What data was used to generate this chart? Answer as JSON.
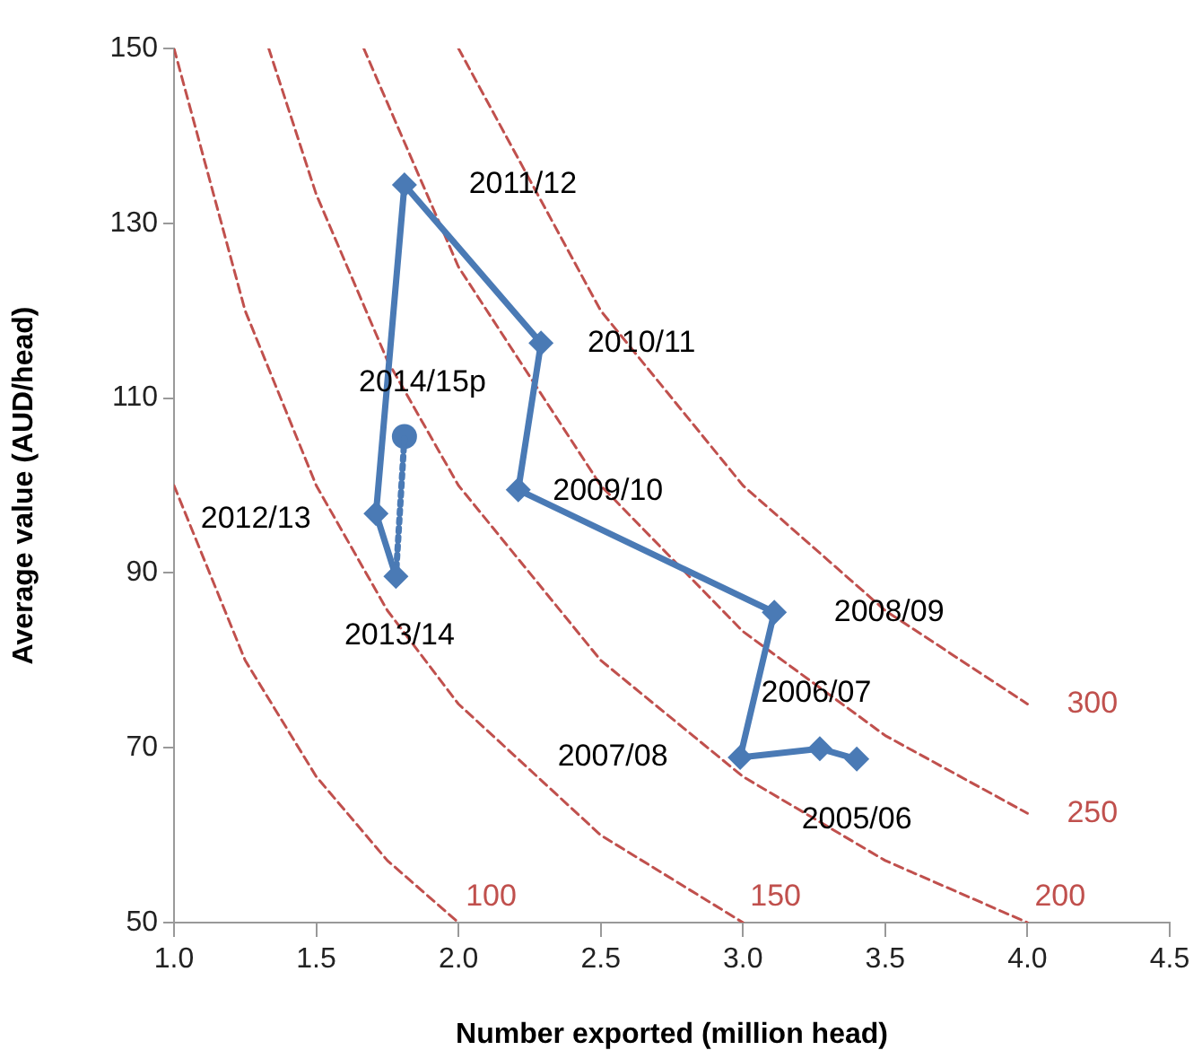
{
  "chart_data": {
    "type": "line",
    "xlabel": "Number exported (million head)",
    "ylabel": "Average value (AUD/head)",
    "xlim": [
      1.0,
      4.5
    ],
    "xticks": [
      {
        "value": 1,
        "label": "1.0"
      },
      {
        "value": 1.5,
        "label": "1.5"
      },
      {
        "value": 2,
        "label": "2.0"
      },
      {
        "value": 2.5,
        "label": "2.5"
      },
      {
        "value": 3,
        "label": "3.0"
      },
      {
        "value": 3.5,
        "label": "3.5"
      },
      {
        "value": 4,
        "label": "4.0"
      },
      {
        "value": 4.5,
        "label": "4.5"
      }
    ],
    "ylim": [
      50,
      150
    ],
    "yticks": [
      50,
      70,
      90,
      110,
      130,
      150
    ],
    "legend": false,
    "series": [
      {
        "color": "#4a7ab5",
        "marker": "diamond",
        "line_style": "solid",
        "x": [
          3.4,
          3.27,
          2.99,
          3.11,
          2.21,
          2.29,
          1.81,
          1.71,
          1.78
        ],
        "values": [
          68.7,
          69.9,
          68.9,
          85.5,
          99.5,
          116.3,
          134.4,
          96.8,
          89.6
        ]
      },
      {
        "color": "#4a7ab5",
        "marker": "none",
        "line_style": "dotted",
        "x": [
          1.78,
          1.81
        ],
        "values": [
          89.6,
          105.6
        ]
      },
      {
        "type": "scatter",
        "color": "#4a7ab5",
        "marker": "circle",
        "x": [
          1.81
        ],
        "values": [
          105.6
        ]
      },
      {
        "name": "100",
        "color": "#c0504d",
        "marker": "none",
        "line_style": "dashed",
        "x": [
          1.0,
          1.25,
          1.5,
          1.75,
          2.0
        ],
        "values": [
          100,
          80,
          66.7,
          57.1,
          50
        ]
      },
      {
        "name": "150",
        "color": "#c0504d",
        "marker": "none",
        "line_style": "dashed",
        "x": [
          1.0,
          1.25,
          1.5,
          1.75,
          2.0,
          2.5,
          3.0
        ],
        "values": [
          150,
          120,
          100,
          85.7,
          75,
          60,
          50
        ]
      },
      {
        "name": "200",
        "color": "#c0504d",
        "marker": "none",
        "line_style": "dashed",
        "x": [
          1.333,
          1.5,
          1.75,
          2.0,
          2.5,
          3.0,
          3.5,
          4.0
        ],
        "values": [
          150,
          133.3,
          114.3,
          100,
          80,
          66.7,
          57.1,
          50
        ]
      },
      {
        "name": "250",
        "color": "#c0504d",
        "marker": "none",
        "line_style": "dashed",
        "x": [
          1.667,
          2.0,
          2.5,
          3.0,
          3.5,
          4.0
        ],
        "values": [
          150,
          125,
          100,
          83.3,
          71.4,
          62.5
        ]
      },
      {
        "name": "300",
        "color": "#c0504d",
        "marker": "none",
        "line_style": "dashed",
        "x": [
          2.0,
          2.5,
          3.0,
          3.5,
          4.0
        ],
        "values": [
          150,
          120,
          100,
          85.7,
          75
        ]
      }
    ],
    "annotations": [
      {
        "text": "2005/06",
        "x": 3.4,
        "y": 68.7
      },
      {
        "text": "2006/07",
        "x": 3.27,
        "y": 69.9
      },
      {
        "text": "2007/08",
        "x": 2.99,
        "y": 68.9
      },
      {
        "text": "2008/09",
        "x": 3.11,
        "y": 85.5
      },
      {
        "text": "2009/10",
        "x": 2.21,
        "y": 99.5
      },
      {
        "text": "2010/11",
        "x": 2.29,
        "y": 116.3
      },
      {
        "text": "2011/12",
        "x": 1.81,
        "y": 134.4
      },
      {
        "text": "2012/13",
        "x": 1.71,
        "y": 96.8
      },
      {
        "text": "2013/14",
        "x": 1.78,
        "y": 89.6
      },
      {
        "text": "2014/15p",
        "x": 1.81,
        "y": 105.6
      }
    ]
  }
}
